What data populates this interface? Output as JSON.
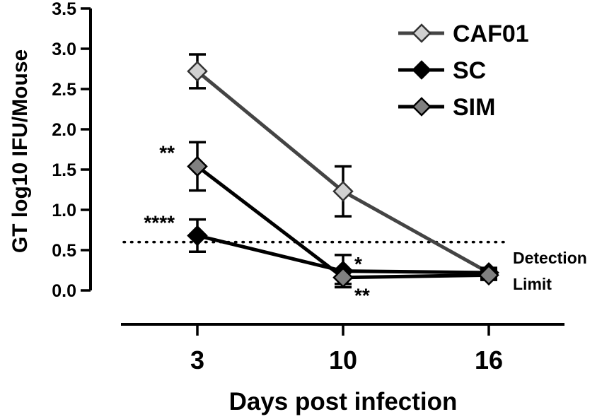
{
  "chart_data": {
    "type": "line",
    "xlabel": "Days post infection",
    "ylabel": "GT log10 IFU/Mouse",
    "ylim": [
      0,
      3.5
    ],
    "y_ticks": [
      "0.0",
      "0.5",
      "1.0",
      "1.5",
      "2.0",
      "2.5",
      "3.0",
      "3.5"
    ],
    "x": [
      3,
      10,
      16
    ],
    "x_ticks": [
      "3",
      "10",
      "16"
    ],
    "legend_position": "top-right",
    "series": [
      {
        "name": "CAF01",
        "color": "#d0d0d0",
        "line_color": "#444444",
        "marker": "diamond",
        "values": [
          2.72,
          1.23,
          0.22
        ],
        "error": [
          0.21,
          0.31,
          0.05
        ]
      },
      {
        "name": "SC",
        "color": "#000000",
        "line_color": "#000000",
        "marker": "diamond",
        "values": [
          0.68,
          0.24,
          0.22
        ],
        "error": [
          0.2,
          0.2,
          0.06
        ]
      },
      {
        "name": "SIM",
        "color": "#808080",
        "line_color": "#000000",
        "marker": "diamond",
        "values": [
          1.54,
          0.16,
          0.19
        ],
        "error": [
          0.3,
          0.08,
          0.06
        ]
      }
    ],
    "reference_line": {
      "value": 0.6,
      "style": "dotted",
      "label_line1": "Detection",
      "label_line2": "Limit"
    },
    "annotations": [
      {
        "text": "**",
        "x": 3,
        "y": 1.75,
        "anchor": "left"
      },
      {
        "text": "****",
        "x": 3,
        "y": 0.88,
        "anchor": "left"
      },
      {
        "text": "*",
        "x": 10,
        "y": 0.37,
        "anchor": "right"
      },
      {
        "text": "**",
        "x": 10,
        "y": -0.02,
        "anchor": "right"
      }
    ]
  }
}
